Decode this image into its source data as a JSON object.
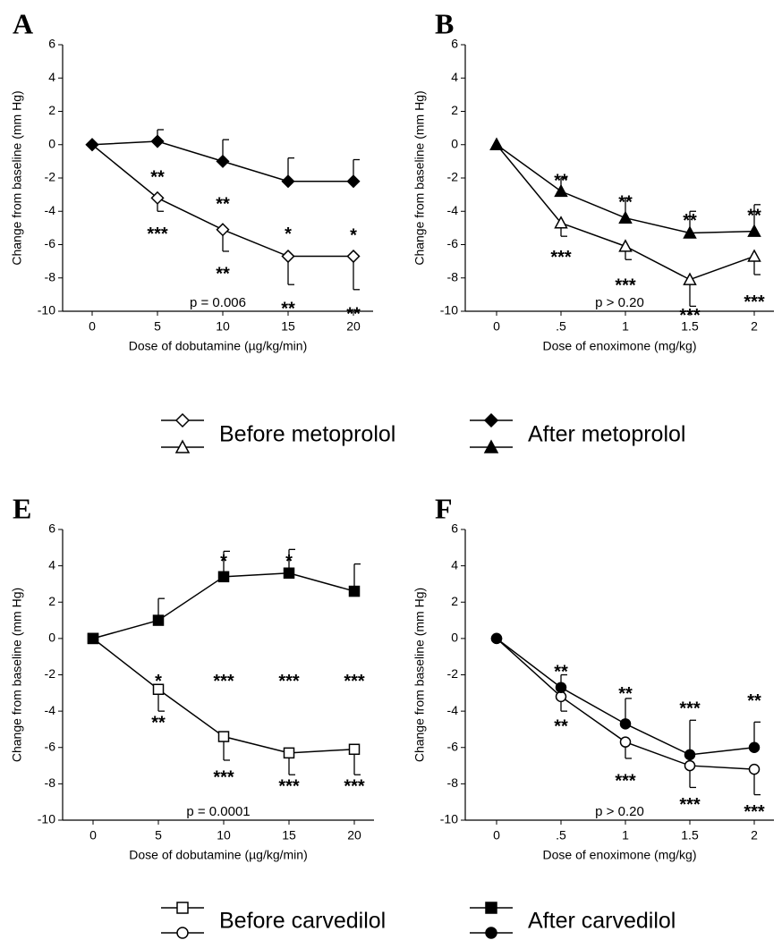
{
  "chart_data": [
    {
      "type": "line",
      "panel": "A",
      "x_label": "Dose of dobutamine (µg/kg/min)",
      "y_label": "Change from baseline (mm Hg)",
      "categories": [
        "0",
        "5",
        "10",
        "15",
        "20"
      ],
      "ylim": [
        -10,
        6
      ],
      "yticks": [
        6,
        4,
        2,
        0,
        -2,
        -4,
        -6,
        -8,
        -10
      ],
      "series": [
        {
          "name": "Before metoprolol",
          "color": "#000",
          "marker": "diamond",
          "filled": false,
          "error_direction": "down",
          "values": [
            0,
            -3.2,
            -5.1,
            -6.7,
            -6.7
          ],
          "errors": [
            0,
            0.8,
            1.3,
            1.7,
            2.0
          ]
        },
        {
          "name": "After metoprolol",
          "color": "#000",
          "marker": "diamond",
          "filled": true,
          "error_direction": "up",
          "values": [
            0,
            0.2,
            -1.0,
            -2.2,
            -2.2
          ],
          "errors": [
            0,
            0.7,
            1.3,
            1.4,
            1.3
          ]
        }
      ],
      "annotations": [
        {
          "text": "**",
          "at": 1,
          "y": -1.8
        },
        {
          "text": "***",
          "at": 1,
          "y": -5.2
        },
        {
          "text": "**",
          "at": 2,
          "y": -3.4
        },
        {
          "text": "**",
          "at": 2,
          "y": -7.6
        },
        {
          "text": "*",
          "at": 3,
          "y": -5.2
        },
        {
          "text": "**",
          "at": 3,
          "y": -9.7
        },
        {
          "text": "*",
          "at": 4,
          "y": -5.3
        },
        {
          "text": "**",
          "at": 4,
          "y": -10
        }
      ],
      "p_text": "p = 0.006"
    },
    {
      "type": "line",
      "panel": "B",
      "x_label": "Dose of enoximone (mg/kg)",
      "y_label": "Change from baseline (mm Hg)",
      "categories": [
        "0",
        ".5",
        "1",
        "1.5",
        "2"
      ],
      "ylim": [
        -10,
        6
      ],
      "yticks": [
        6,
        4,
        2,
        0,
        -2,
        -4,
        -6,
        -8,
        -10
      ],
      "series": [
        {
          "color": "#000",
          "marker": "triangle",
          "filled": false,
          "error_direction": "down",
          "values": [
            0,
            -4.7,
            -6.1,
            -8.1,
            -6.7
          ],
          "errors": [
            0,
            0.8,
            0.8,
            1.6,
            1.1
          ]
        },
        {
          "color": "#000",
          "marker": "triangle",
          "filled": true,
          "error_direction": "up",
          "values": [
            0,
            -2.8,
            -4.4,
            -5.3,
            -5.2
          ],
          "errors": [
            0,
            0.8,
            1.2,
            1.3,
            1.6
          ]
        }
      ],
      "annotations": [
        {
          "text": "**",
          "at": 1,
          "y": -2.0
        },
        {
          "text": "***",
          "at": 1,
          "y": -6.6
        },
        {
          "text": "**",
          "at": 2,
          "y": -3.3
        },
        {
          "text": "***",
          "at": 2,
          "y": -8.3
        },
        {
          "text": "**",
          "at": 3,
          "y": -4.4
        },
        {
          "text": "***",
          "at": 3,
          "y": -10.1
        },
        {
          "text": "**",
          "at": 4,
          "y": -4.1
        },
        {
          "text": "***",
          "at": 4,
          "y": -9.3
        }
      ],
      "p_text": "p > 0.20"
    },
    {
      "type": "line",
      "panel": "E",
      "x_label": "Dose of dobutamine (µg/kg/min)",
      "y_label": "Change from baseline (mm Hg)",
      "categories": [
        "0",
        "5",
        "10",
        "15",
        "20"
      ],
      "ylim": [
        -10,
        6
      ],
      "yticks": [
        6,
        4,
        2,
        0,
        -2,
        -4,
        -6,
        -8,
        -10
      ],
      "series": [
        {
          "name": "Before carvedilol",
          "color": "#000",
          "marker": "square",
          "filled": false,
          "error_direction": "down",
          "values": [
            0,
            -2.8,
            -5.4,
            -6.3,
            -6.1
          ],
          "errors": [
            0,
            1.2,
            1.3,
            1.2,
            1.4
          ]
        },
        {
          "name": "After carvedilol",
          "color": "#000",
          "marker": "square",
          "filled": true,
          "error_direction": "up",
          "values": [
            0,
            1.0,
            3.4,
            3.6,
            2.6
          ],
          "errors": [
            0,
            1.2,
            1.4,
            1.3,
            1.5
          ]
        }
      ],
      "annotations": [
        {
          "text": "*",
          "at": 1,
          "y": -2.2
        },
        {
          "text": "**",
          "at": 1,
          "y": -4.5
        },
        {
          "text": "*",
          "at": 2,
          "y": 4.4
        },
        {
          "text": "***",
          "at": 2,
          "y": -2.2
        },
        {
          "text": "***",
          "at": 2,
          "y": -7.5
        },
        {
          "text": "*",
          "at": 3,
          "y": 4.4
        },
        {
          "text": "***",
          "at": 3,
          "y": -2.2
        },
        {
          "text": "***",
          "at": 3,
          "y": -8.0
        },
        {
          "text": "***",
          "at": 4,
          "y": -2.2
        },
        {
          "text": "***",
          "at": 4,
          "y": -8.0
        }
      ],
      "p_text": "p = 0.0001"
    },
    {
      "type": "line",
      "panel": "F",
      "x_label": "Dose of enoximone (mg/kg)",
      "y_label": "Change from baseline (mm Hg)",
      "categories": [
        "0",
        ".5",
        "1",
        "1.5",
        "2"
      ],
      "ylim": [
        -10,
        6
      ],
      "yticks": [
        6,
        4,
        2,
        0,
        -2,
        -4,
        -6,
        -8,
        -10
      ],
      "series": [
        {
          "color": "#000",
          "marker": "circle",
          "filled": false,
          "error_direction": "down",
          "values": [
            0,
            -3.2,
            -5.7,
            -7.0,
            -7.2
          ],
          "errors": [
            0,
            0.8,
            0.9,
            1.2,
            1.4
          ]
        },
        {
          "color": "#000",
          "marker": "circle",
          "filled": true,
          "error_direction": "up",
          "values": [
            0,
            -2.7,
            -4.7,
            -6.4,
            -6.0
          ],
          "errors": [
            0,
            0.7,
            1.4,
            1.9,
            1.4
          ]
        }
      ],
      "annotations": [
        {
          "text": "**",
          "at": 1,
          "y": -1.7
        },
        {
          "text": "**",
          "at": 1,
          "y": -4.7
        },
        {
          "text": "**",
          "at": 2,
          "y": -2.9
        },
        {
          "text": "***",
          "at": 2,
          "y": -7.7
        },
        {
          "text": "***",
          "at": 3,
          "y": -3.7
        },
        {
          "text": "***",
          "at": 3,
          "y": -9.0
        },
        {
          "text": "**",
          "at": 4,
          "y": -3.3
        },
        {
          "text": "***",
          "at": 4,
          "y": -9.4
        }
      ],
      "p_text": "p > 0.20"
    }
  ]
}
